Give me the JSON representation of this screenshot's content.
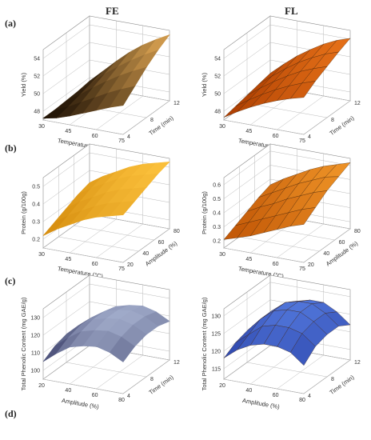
{
  "figure": {
    "column_headers": [
      "FE",
      "FL"
    ],
    "row_labels": [
      "(a)",
      "(b)",
      "(c)",
      "(d)"
    ]
  },
  "chart_data": [
    {
      "type": "surface",
      "row": "(a)",
      "column": "FE",
      "render": "smooth",
      "xlabel": "Temperature (°C)",
      "ylabel": "Time (min)",
      "zlabel": "Yield (%)",
      "xticks": [
        30,
        45,
        60,
        75
      ],
      "yticks": [
        4,
        8,
        12
      ],
      "zticks": [
        48,
        50,
        52,
        54
      ],
      "xlim": [
        30,
        75
      ],
      "ylim": [
        4,
        12
      ],
      "zlim": [
        47,
        55
      ],
      "colors": {
        "low": "#1a0e03",
        "high": "#f0b35a"
      },
      "grid_x": [
        30,
        37.5,
        45,
        52.5,
        60,
        67.5,
        75
      ],
      "grid_y": [
        4,
        6,
        8,
        10,
        12
      ],
      "z": [
        [
          47.2,
          47.2,
          47.3,
          47.4,
          47.6
        ],
        [
          47.5,
          47.8,
          48.2,
          48.6,
          49.0
        ],
        [
          48.0,
          48.6,
          49.3,
          49.9,
          50.4
        ],
        [
          48.6,
          49.4,
          50.3,
          51.0,
          51.7
        ],
        [
          49.2,
          50.2,
          51.2,
          52.0,
          52.8
        ],
        [
          49.8,
          50.9,
          52.0,
          52.9,
          53.7
        ],
        [
          50.3,
          51.5,
          52.7,
          53.7,
          54.5
        ]
      ]
    },
    {
      "type": "surface",
      "row": "(a)",
      "column": "FL",
      "render": "mesh",
      "xlabel": "Temperature (°C)",
      "ylabel": "Time (min)",
      "zlabel": "Yield (%)",
      "xticks": [
        30,
        45,
        60,
        75
      ],
      "yticks": [
        4,
        8,
        12
      ],
      "zticks": [
        48,
        50,
        52,
        54
      ],
      "xlim": [
        30,
        75
      ],
      "ylim": [
        4,
        12
      ],
      "zlim": [
        47,
        55
      ],
      "colors": {
        "low": "#a83a00",
        "high": "#f07a1c"
      },
      "grid_x": [
        30,
        37.5,
        45,
        52.5,
        60,
        67.5,
        75
      ],
      "grid_y": [
        4,
        6,
        8,
        10,
        12
      ],
      "z": [
        [
          47.3,
          47.6,
          47.9,
          48.2,
          48.5
        ],
        [
          48.2,
          48.6,
          49.0,
          49.4,
          49.8
        ],
        [
          49.0,
          49.5,
          50.0,
          50.5,
          51.0
        ],
        [
          49.7,
          50.3,
          50.9,
          51.5,
          52.0
        ],
        [
          50.3,
          51.0,
          51.7,
          52.3,
          52.9
        ],
        [
          50.8,
          51.6,
          52.3,
          53.0,
          53.6
        ],
        [
          51.2,
          52.1,
          52.8,
          53.5,
          54.1
        ]
      ]
    },
    {
      "type": "surface",
      "row": "(b)",
      "column": "FE",
      "render": "smooth",
      "xlabel": "Temperature (°C)",
      "ylabel": "Amplitude (%)",
      "zlabel": "Protein (g/100g)",
      "xticks": [
        30,
        45,
        60,
        75
      ],
      "yticks": [
        20,
        40,
        60,
        80
      ],
      "zticks": [
        0.2,
        0.3,
        0.4,
        0.5
      ],
      "xlim": [
        30,
        75
      ],
      "ylim": [
        20,
        80
      ],
      "zlim": [
        0.15,
        0.55
      ],
      "colors": {
        "low": "#c97c00",
        "high": "#ffc640"
      },
      "grid_x": [
        30,
        37.5,
        45,
        52.5,
        60,
        67.5,
        75
      ],
      "grid_y": [
        20,
        35,
        50,
        65,
        80
      ],
      "z": [
        [
          0.22,
          0.25,
          0.28,
          0.31,
          0.33
        ],
        [
          0.27,
          0.3,
          0.33,
          0.36,
          0.38
        ],
        [
          0.31,
          0.34,
          0.37,
          0.4,
          0.42
        ],
        [
          0.35,
          0.38,
          0.41,
          0.44,
          0.46
        ],
        [
          0.38,
          0.41,
          0.44,
          0.47,
          0.49
        ],
        [
          0.4,
          0.43,
          0.46,
          0.49,
          0.51
        ],
        [
          0.42,
          0.45,
          0.48,
          0.51,
          0.53
        ]
      ]
    },
    {
      "type": "surface",
      "row": "(b)",
      "column": "FL",
      "render": "mesh",
      "xlabel": "Temperature (°C)",
      "ylabel": "Amplitude (%)",
      "zlabel": "Protein (g/100g)",
      "xticks": [
        30,
        45,
        60,
        75
      ],
      "yticks": [
        20,
        40,
        60,
        80
      ],
      "zticks": [
        0.2,
        0.3,
        0.4,
        0.5,
        0.6
      ],
      "xlim": [
        30,
        75
      ],
      "ylim": [
        20,
        80
      ],
      "zlim": [
        0.15,
        0.65
      ],
      "colors": {
        "low": "#b84a00",
        "high": "#f39a2a"
      },
      "grid_x": [
        30,
        37.5,
        45,
        52.5,
        60,
        67.5,
        75
      ],
      "grid_y": [
        20,
        35,
        50,
        65,
        80
      ],
      "z": [
        [
          0.21,
          0.25,
          0.29,
          0.33,
          0.36
        ],
        [
          0.24,
          0.29,
          0.34,
          0.38,
          0.42
        ],
        [
          0.27,
          0.33,
          0.38,
          0.43,
          0.47
        ],
        [
          0.31,
          0.37,
          0.43,
          0.48,
          0.52
        ],
        [
          0.35,
          0.41,
          0.47,
          0.52,
          0.56
        ],
        [
          0.39,
          0.45,
          0.51,
          0.56,
          0.59
        ],
        [
          0.42,
          0.48,
          0.54,
          0.58,
          0.62
        ]
      ]
    },
    {
      "type": "surface",
      "row": "(c)",
      "column": "FE",
      "render": "smooth",
      "xlabel": "Amplitude (%)",
      "ylabel": "Time (min)",
      "zlabel": "Total Phenolic Content (mg GAE/g)",
      "xticks": [
        20,
        40,
        60,
        80
      ],
      "yticks": [
        4,
        8,
        12
      ],
      "zticks": [
        100,
        110,
        120,
        130
      ],
      "xlim": [
        20,
        80
      ],
      "ylim": [
        4,
        12
      ],
      "zlim": [
        95,
        135
      ],
      "colors": {
        "low": "#000030",
        "high": "#d8e6ff"
      },
      "grid_x": [
        20,
        30,
        40,
        50,
        60,
        70,
        80
      ],
      "grid_y": [
        4,
        6,
        8,
        10,
        12
      ],
      "z": [
        [
          105,
          109,
          111,
          111,
          109
        ],
        [
          111,
          115,
          117,
          117,
          115
        ],
        [
          116,
          120,
          122,
          122,
          120
        ],
        [
          118,
          122,
          124,
          124,
          122
        ],
        [
          119,
          123,
          125,
          125,
          123
        ],
        [
          117,
          121,
          123,
          123,
          121
        ],
        [
          113,
          117,
          119,
          119,
          117
        ]
      ]
    },
    {
      "type": "surface",
      "row": "(c)",
      "column": "FL",
      "render": "mesh",
      "xlabel": "Amplitude (%)",
      "ylabel": "Time (min)",
      "zlabel": "Total Phenolic Content (mg GAE/g)",
      "xticks": [
        20,
        40,
        60,
        80
      ],
      "yticks": [
        4,
        8,
        12
      ],
      "zticks": [
        115,
        120,
        125,
        130
      ],
      "xlim": [
        20,
        80
      ],
      "ylim": [
        4,
        12
      ],
      "zlim": [
        112,
        132
      ],
      "colors": {
        "low": "#16268c",
        "high": "#5a82e6"
      },
      "grid_x": [
        20,
        30,
        40,
        50,
        60,
        70,
        80
      ],
      "grid_y": [
        4,
        6,
        8,
        10,
        12
      ],
      "z": [
        [
          118,
          120,
          121,
          121,
          120
        ],
        [
          121,
          123,
          125,
          125,
          123
        ],
        [
          123,
          126,
          128,
          128,
          126
        ],
        [
          124,
          127,
          129,
          129,
          127
        ],
        [
          124,
          127,
          129,
          129,
          127
        ],
        [
          123,
          126,
          127,
          127,
          125
        ],
        [
          120,
          123,
          124,
          124,
          122
        ]
      ]
    }
  ]
}
